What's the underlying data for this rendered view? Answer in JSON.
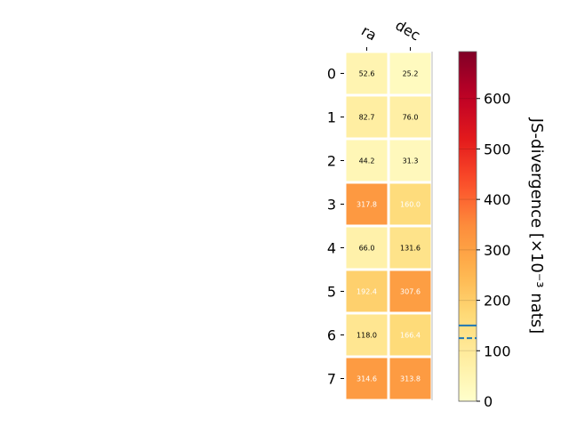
{
  "chart_data": {
    "type": "heatmap",
    "columns": [
      "ra",
      "dec"
    ],
    "rows": [
      "0",
      "1",
      "2",
      "3",
      "4",
      "5",
      "6",
      "7"
    ],
    "values": [
      [
        52.6,
        25.2
      ],
      [
        82.7,
        76.0
      ],
      [
        44.2,
        31.3
      ],
      [
        317.8,
        160.0
      ],
      [
        66.0,
        131.6
      ],
      [
        192.4,
        307.6
      ],
      [
        118.0,
        166.4
      ],
      [
        314.6,
        313.8
      ]
    ],
    "value_labels": [
      [
        "52.6",
        "25.2"
      ],
      [
        "82.7",
        "76.0"
      ],
      [
        "44.2",
        "31.3"
      ],
      [
        "317.8",
        "160.0"
      ],
      [
        "66.0",
        "131.6"
      ],
      [
        "192.4",
        "307.6"
      ],
      [
        "118.0",
        "166.4"
      ],
      [
        "314.6",
        "313.8"
      ]
    ],
    "colorbar": {
      "label": "JS-divergence [×10⁻³ nats]",
      "range": [
        0,
        693
      ],
      "ticks": [
        "0",
        "100",
        "200",
        "300",
        "400",
        "500",
        "600"
      ],
      "tick_values": [
        0,
        100,
        200,
        300,
        400,
        500,
        600
      ],
      "colormap": "YlOrRd",
      "solid_marker_value": 150,
      "dashed_marker_value": 125,
      "marker_color": "#1f77b4"
    }
  }
}
